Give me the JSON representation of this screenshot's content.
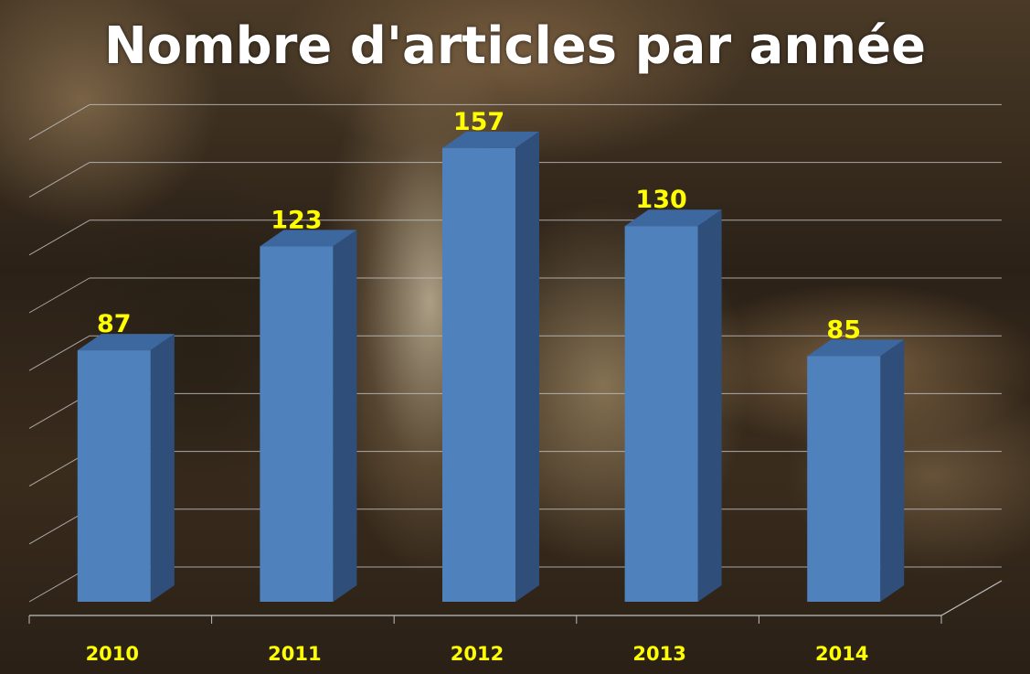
{
  "chart_data": {
    "type": "bar",
    "title": "Nombre d'articles par année",
    "categories": [
      "2010",
      "2011",
      "2012",
      "2013",
      "2014"
    ],
    "values": [
      87,
      123,
      157,
      130,
      85
    ],
    "xlabel": "",
    "ylabel": "",
    "ylim": [
      0,
      160
    ],
    "grid": true,
    "legend": "none",
    "style": "3d-column"
  },
  "colors": {
    "bar_front": "#4f81bd",
    "bar_side": "#2f4f7a",
    "bar_top": "#3d679f",
    "label": "#ffff00",
    "title": "#ffffff",
    "gridline": "#bfbfbf"
  }
}
